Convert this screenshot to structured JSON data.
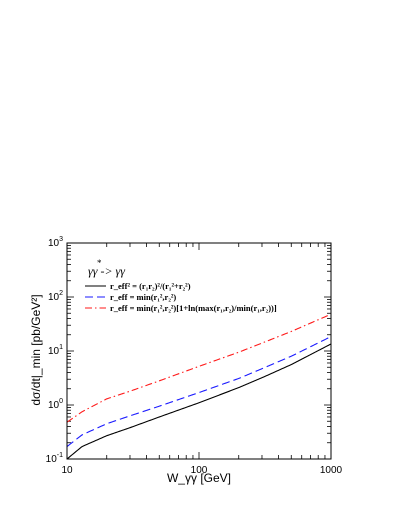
{
  "chart_data": {
    "type": "line",
    "title": "γγ -> γγ",
    "xlabel": "W_γγ [GeV]",
    "ylabel": "dσ/dt|_min [pb/GeV²]",
    "xscale": "log",
    "yscale": "log",
    "xlim": [
      10,
      1000
    ],
    "ylim": [
      0.1,
      1000
    ],
    "x_ticks": [
      {
        "value": 10,
        "label": "10"
      },
      {
        "value": 100,
        "label": "100"
      },
      {
        "value": 1000,
        "label": "1000"
      }
    ],
    "y_ticks": [
      {
        "value": 0.1,
        "mantissa": "10",
        "exp": "-1"
      },
      {
        "value": 1,
        "mantissa": "10",
        "exp": "0"
      },
      {
        "value": 10,
        "mantissa": "10",
        "exp": "1"
      },
      {
        "value": 100,
        "mantissa": "10",
        "exp": "2"
      },
      {
        "value": 1000,
        "mantissa": "10",
        "exp": "3"
      }
    ],
    "legend_placement": "top-left",
    "series": [
      {
        "name": "r_eff² = (r₁r₂)²/(r₁²+r₂²)",
        "color": "#000000",
        "dash": "solid",
        "x": [
          10,
          13,
          20,
          30,
          50,
          100,
          200,
          300,
          500,
          1000
        ],
        "y": [
          0.1,
          0.17,
          0.27,
          0.38,
          0.6,
          1.1,
          2.1,
          3.2,
          5.6,
          13.5
        ]
      },
      {
        "name": "r_eff = min(r₁²,r₂²)",
        "color": "#1a1aff",
        "dash": "long-dash",
        "x": [
          10,
          13,
          20,
          30,
          50,
          100,
          200,
          300,
          500,
          1000
        ],
        "y": [
          0.17,
          0.28,
          0.45,
          0.63,
          0.95,
          1.7,
          3.1,
          4.7,
          8.0,
          18.5
        ]
      },
      {
        "name": "r_eff = min(r₁²,r₂²)[1+ln(max(r₁,r₂)/min(r₁,r₂))]",
        "color": "#ff1a1a",
        "dash": "dash-dot",
        "x": [
          10,
          13,
          20,
          30,
          50,
          100,
          200,
          300,
          500,
          1000
        ],
        "y": [
          0.48,
          0.75,
          1.3,
          1.8,
          2.8,
          5.2,
          9.5,
          14,
          23,
          48
        ]
      }
    ]
  }
}
